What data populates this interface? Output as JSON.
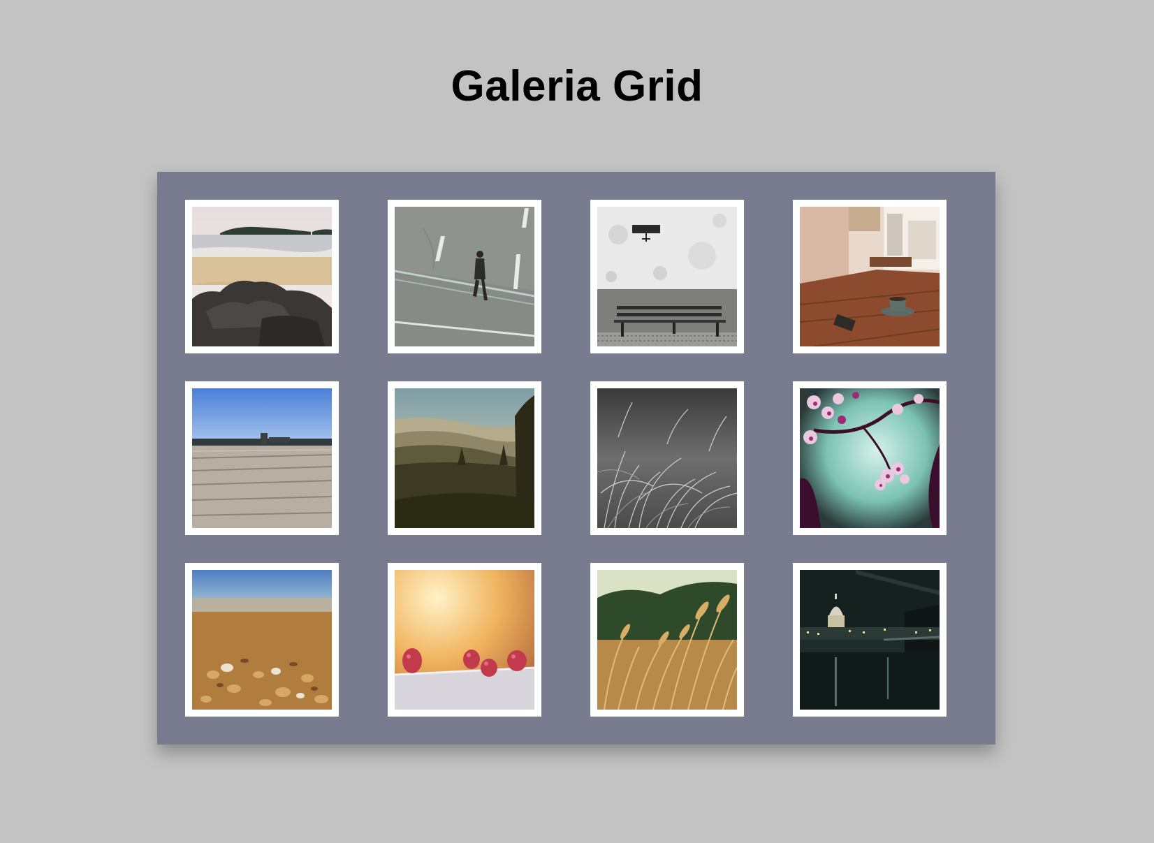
{
  "page": {
    "title": "Galeria Grid"
  },
  "colors": {
    "background": "#c3c3c3",
    "gallery_panel": "#797b8f",
    "frame": "#ffffff"
  },
  "gallery": {
    "photos": [
      {
        "subject": "beach-rocks-island"
      },
      {
        "subject": "man-walking-on-road"
      },
      {
        "subject": "bench-by-wall"
      },
      {
        "subject": "cafe-table-coffee"
      },
      {
        "subject": "wooden-pier-blue-sky"
      },
      {
        "subject": "misty-hills-forest"
      },
      {
        "subject": "grass-black-and-white"
      },
      {
        "subject": "cherry-blossom-branch"
      },
      {
        "subject": "shells-on-beach"
      },
      {
        "subject": "raspberries-on-table"
      },
      {
        "subject": "golden-wheat-field"
      },
      {
        "subject": "city-night-river-dome"
      }
    ]
  }
}
